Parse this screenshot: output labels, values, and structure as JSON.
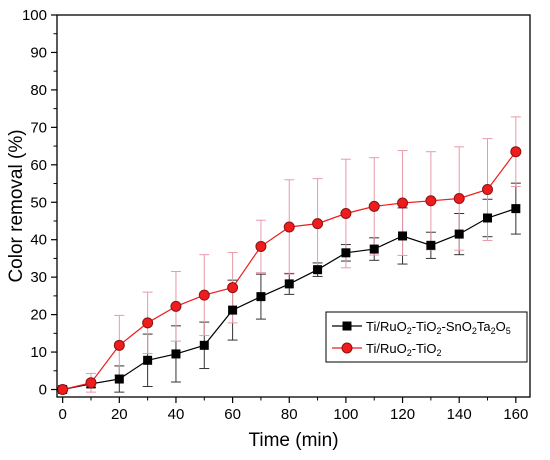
{
  "chart_data": {
    "type": "line",
    "title": "",
    "xlabel": "Time (min)",
    "ylabel": "Color removal (%)",
    "xlim": [
      -2,
      165
    ],
    "ylim": [
      -2,
      100
    ],
    "xticks": [
      0,
      20,
      40,
      60,
      80,
      100,
      120,
      140,
      160
    ],
    "yticks": [
      0,
      10,
      20,
      30,
      40,
      50,
      60,
      70,
      80,
      90,
      100
    ],
    "grid": false,
    "legend_position": "bottom-right",
    "x": [
      0,
      10,
      20,
      30,
      40,
      50,
      60,
      70,
      80,
      90,
      100,
      110,
      120,
      130,
      140,
      150,
      160
    ],
    "series": [
      {
        "name_parts": [
          {
            "t": "Ti/RuO"
          },
          {
            "t": "2",
            "sub": true
          },
          {
            "t": "-TiO"
          },
          {
            "t": "2",
            "sub": true
          },
          {
            "t": "-SnO"
          },
          {
            "t": "2",
            "sub": true
          },
          {
            "t": "Ta"
          },
          {
            "t": "2",
            "sub": true
          },
          {
            "t": "O"
          },
          {
            "t": "5",
            "sub": true
          }
        ],
        "color": "#000000",
        "marker": "square",
        "values": [
          0,
          1.5,
          2.8,
          7.8,
          9.5,
          11.8,
          21.2,
          24.8,
          28.2,
          32.0,
          36.5,
          37.5,
          41.0,
          38.5,
          41.5,
          45.8,
          48.3
        ],
        "errors": [
          0.3,
          1.0,
          3.5,
          7.0,
          7.5,
          6.2,
          8.0,
          6.0,
          2.8,
          1.8,
          2.2,
          3.0,
          7.5,
          3.5,
          5.5,
          5.0,
          6.8
        ]
      },
      {
        "name_parts": [
          {
            "t": "Ti/RuO"
          },
          {
            "t": "2",
            "sub": true
          },
          {
            "t": "-TiO"
          },
          {
            "t": "2",
            "sub": true
          }
        ],
        "color": "#ee1c1c",
        "marker_edge": "#8b1414",
        "marker": "circle",
        "values": [
          0,
          1.8,
          11.8,
          17.8,
          22.2,
          25.2,
          27.2,
          38.2,
          43.4,
          44.3,
          47.0,
          48.9,
          49.8,
          50.4,
          51.0,
          53.4,
          63.5
        ],
        "errors": [
          0.3,
          2.5,
          8.0,
          8.2,
          9.3,
          10.8,
          9.4,
          7.0,
          12.6,
          12.0,
          14.5,
          13.0,
          14.0,
          13.1,
          13.8,
          13.6,
          9.3
        ]
      }
    ]
  }
}
